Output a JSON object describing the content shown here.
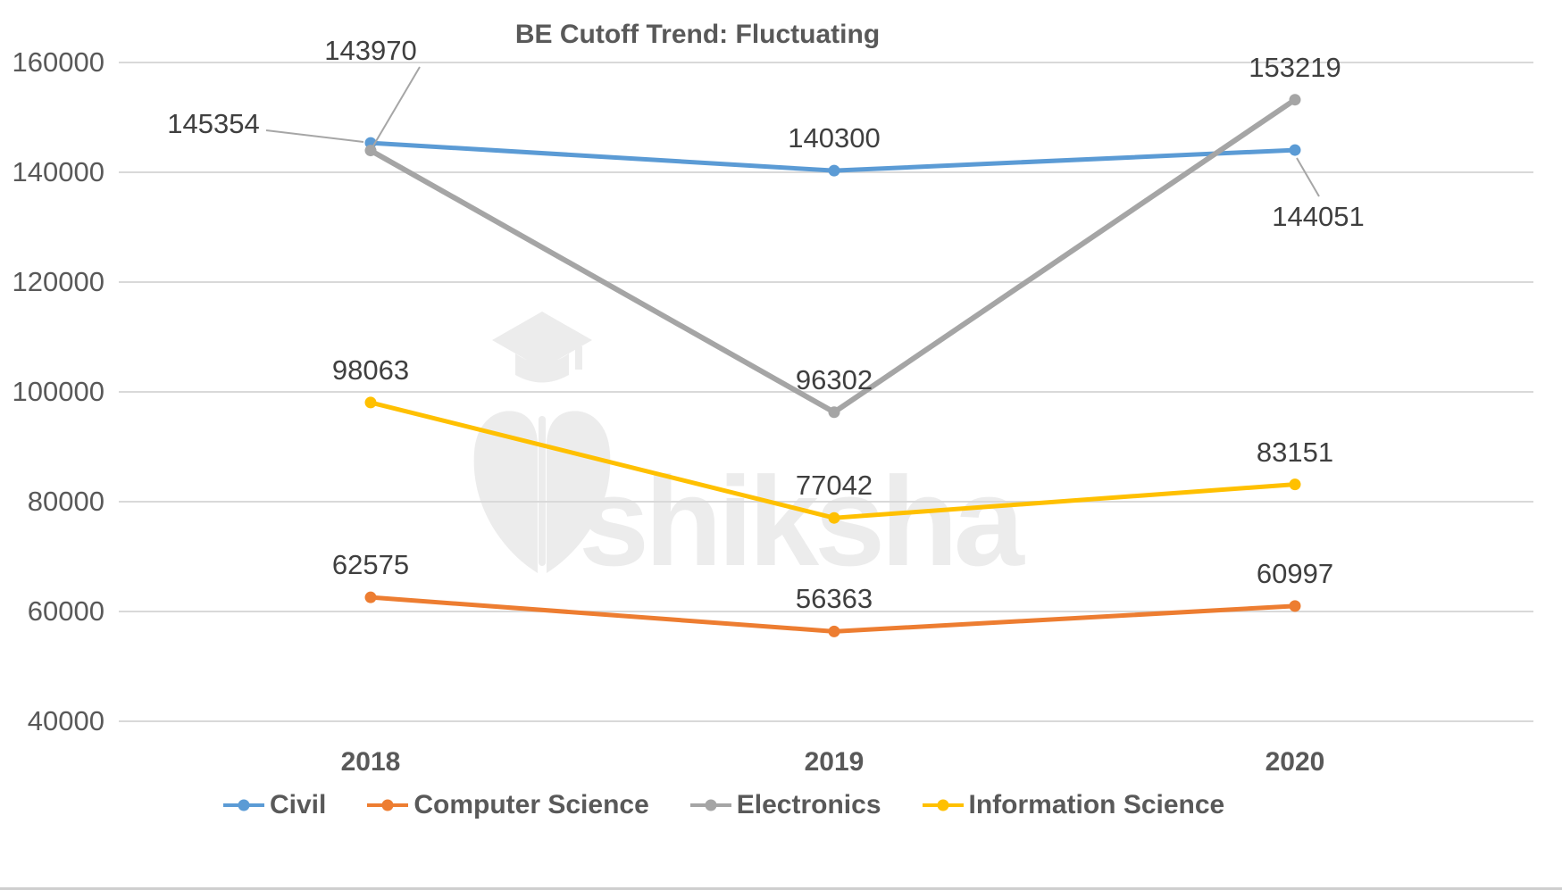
{
  "title": "BE Cutoff Trend: Fluctuating",
  "watermark": {
    "text": "shiksha"
  },
  "colors": {
    "civil": "#5B9BD5",
    "computer_science": "#ED7D31",
    "electronics": "#A5A5A5",
    "information_science": "#FFC000",
    "gridline": "#D9D9D9",
    "axis_text": "#595959",
    "data_label_text": "#3F3F3F",
    "leader_line": "#A6A6A6",
    "watermark": "#ECECEC"
  },
  "chart_data": {
    "type": "line",
    "title": "BE Cutoff Trend: Fluctuating",
    "categories": [
      "2018",
      "2019",
      "2020"
    ],
    "series": [
      {
        "name": "Civil",
        "color": "#5B9BD5",
        "values": [
          145354,
          140300,
          144051
        ]
      },
      {
        "name": "Computer Science",
        "color": "#ED7D31",
        "values": [
          62575,
          56363,
          60997
        ]
      },
      {
        "name": "Electronics",
        "color": "#A5A5A5",
        "values": [
          143970,
          96302,
          153219
        ]
      },
      {
        "name": "Information Science",
        "color": "#FFC000",
        "values": [
          98063,
          77042,
          83151
        ]
      }
    ],
    "xlabel": "",
    "ylabel": "",
    "y_axis": {
      "min": 40000,
      "max": 160000,
      "step": 20000,
      "ticks": [
        160000,
        140000,
        120000,
        100000,
        80000,
        60000,
        40000
      ]
    },
    "grid": true,
    "data_labels": true,
    "legend_position": "bottom",
    "markers": "circle"
  }
}
